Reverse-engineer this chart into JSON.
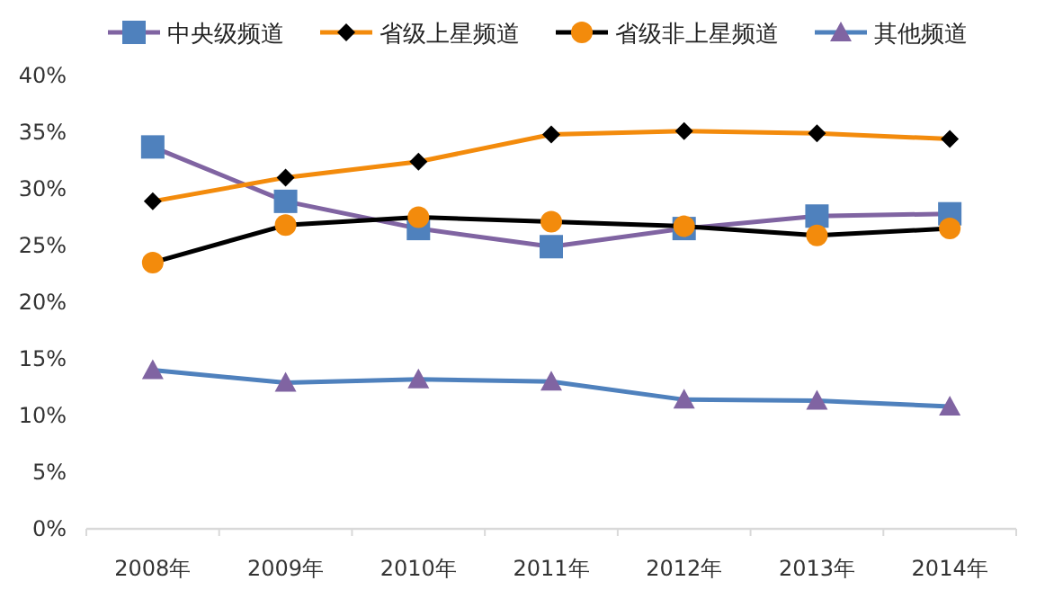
{
  "chart_data": {
    "type": "line",
    "categories": [
      "2008年",
      "2009年",
      "2010年",
      "2011年",
      "2012年",
      "2013年",
      "2014年"
    ],
    "ylim": [
      0,
      40
    ],
    "yticks": [
      {
        "value": 0,
        "label": "0%"
      },
      {
        "value": 5,
        "label": "5%"
      },
      {
        "value": 10,
        "label": "10%"
      },
      {
        "value": 15,
        "label": "15%"
      },
      {
        "value": 20,
        "label": "20%"
      },
      {
        "value": 25,
        "label": "25%"
      },
      {
        "value": 30,
        "label": "30%"
      },
      {
        "value": 35,
        "label": "35%"
      },
      {
        "value": 40,
        "label": "40%"
      }
    ],
    "grid": false,
    "legend": "top",
    "series": [
      {
        "name": "中央级频道",
        "color": "#8064a2",
        "marker": "square",
        "colors": [
          "#4f81bd",
          "#4f81bd",
          "#4f81bd",
          "#4f81bd",
          "#4f81bd",
          "#4f81bd",
          "#4f81bd"
        ],
        "values": [
          33.7,
          28.9,
          26.5,
          24.9,
          26.5,
          27.6,
          27.8
        ]
      },
      {
        "name": "省级上星频道",
        "color": "#f38b0c",
        "marker": "diamond",
        "colors": [
          "#000000",
          "#000000",
          "#000000",
          "#000000",
          "#000000",
          "#000000",
          "#000000"
        ],
        "values": [
          28.9,
          31.0,
          32.4,
          34.8,
          35.1,
          34.9,
          34.4
        ]
      },
      {
        "name": "省级非上星频道",
        "color": "#000000",
        "marker": "circle",
        "colors": [
          "#f38b0c",
          "#f38b0c",
          "#f38b0c",
          "#f38b0c",
          "#f38b0c",
          "#f38b0c",
          "#f38b0c"
        ],
        "values": [
          23.5,
          26.8,
          27.5,
          27.1,
          26.7,
          25.9,
          26.5
        ]
      },
      {
        "name": "其他频道",
        "color": "#4f81bd",
        "marker": "triangle",
        "colors": [
          "#8064a2",
          "#8064a2",
          "#8064a2",
          "#8064a2",
          "#8064a2",
          "#8064a2",
          "#8064a2"
        ],
        "values": [
          14.0,
          12.9,
          13.2,
          13.0,
          11.4,
          11.3,
          10.8
        ]
      }
    ]
  }
}
